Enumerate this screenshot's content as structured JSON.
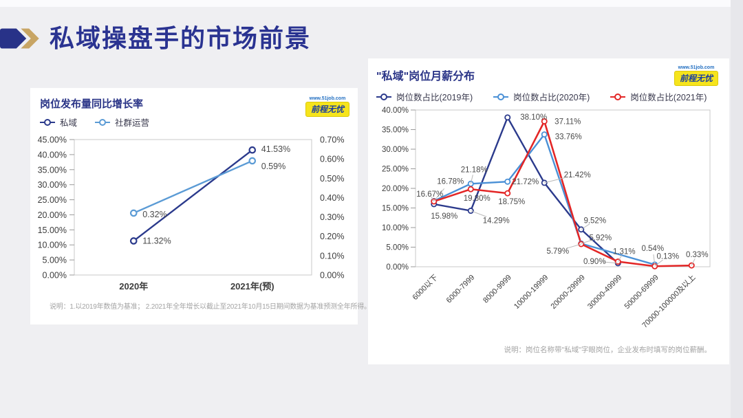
{
  "slide": {
    "title": "私域操盘手的市场前景",
    "background": "#efeff2",
    "accent_navy": "#2a3391",
    "accent_gold": "#c8a564"
  },
  "brand": {
    "site": "www.51job.com",
    "name": "前程无忧"
  },
  "chart_data": [
    {
      "type": "line",
      "title": "岗位发布量同比增长率",
      "categories": [
        "2020年",
        "2021年(预)"
      ],
      "series": [
        {
          "name": "私域",
          "color": "#2b3a8c",
          "axis": "left",
          "values": [
            11.32,
            41.53
          ],
          "point_labels": [
            "11.32%",
            "41.53%"
          ]
        },
        {
          "name": "社群运营",
          "color": "#5b9bd5",
          "axis": "right",
          "values": [
            0.32,
            0.59
          ],
          "point_labels": [
            "0.32%",
            "0.59%"
          ]
        }
      ],
      "left_axis": {
        "min": 0,
        "max": 45,
        "tick_labels": [
          "45.00%",
          "40.00%",
          "35.00%",
          "30.00%",
          "25.00%",
          "20.00%",
          "15.00%",
          "10.00%",
          "5.00%",
          "0.00%"
        ]
      },
      "right_axis": {
        "min": 0,
        "max": 0.7,
        "tick_labels": [
          "0.70%",
          "0.60%",
          "0.50%",
          "0.40%",
          "0.30%",
          "0.20%",
          "0.10%",
          "0.00%"
        ]
      },
      "legend_position": "top-left",
      "grid": false,
      "footnote": "说明：1.以2019年数值为基准； 2.2021年全年增长以截止至2021年10月15日期间数据为基准预测全年所得。"
    },
    {
      "type": "line",
      "title": "\"私域\"岗位月薪分布",
      "categories": [
        "6000以下",
        "6000-7999",
        "8000-9999",
        "10000-19999",
        "20000-29999",
        "30000-49999",
        "50000-69999",
        "70000-100000及以上"
      ],
      "series": [
        {
          "name": "岗位数占比(2019年)",
          "color": "#2b3a8c",
          "values": [
            15.98,
            14.29,
            38.1,
            21.42,
            9.52,
            0.9,
            null,
            null
          ],
          "point_labels": [
            "15.98%",
            "14.29%",
            "38.10%",
            "21.42%",
            "9.52%",
            "0.90%",
            null,
            null
          ]
        },
        {
          "name": "岗位数占比(2020年)",
          "color": "#4a90d6",
          "values": [
            16.78,
            21.18,
            21.72,
            33.76,
            5.92,
            null,
            0.54,
            null
          ],
          "point_labels": [
            "16.78%",
            "21.18%",
            "21.72%",
            "33.76%",
            "5.92%",
            null,
            "0.54%",
            null
          ]
        },
        {
          "name": "岗位数占比(2021年)",
          "color": "#e32626",
          "values": [
            16.67,
            19.8,
            18.75,
            37.11,
            5.79,
            1.31,
            0.13,
            0.33
          ],
          "point_labels": [
            "16.67%",
            "19.80%",
            "18.75%",
            "37.11%",
            "5.79%",
            "1.31%",
            "0.13%",
            "0.33%"
          ]
        }
      ],
      "y_axis": {
        "min": 0,
        "max": 40,
        "tick_labels": [
          "40.00%",
          "35.00%",
          "30.00%",
          "25.00%",
          "20.00%",
          "15.00%",
          "10.00%",
          "5.00%",
          "0.00%"
        ]
      },
      "legend_position": "top-left",
      "grid": false,
      "footnote": "说明：岗位名称带\"私域\"字眼岗位，企业发布时填写的岗位薪酬。"
    }
  ]
}
